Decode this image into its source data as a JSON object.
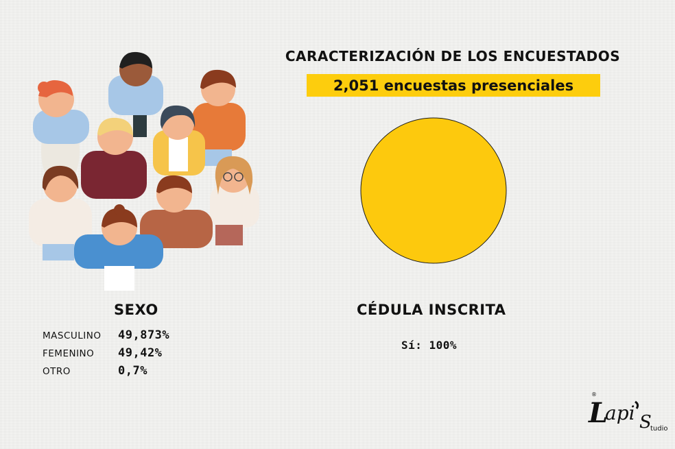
{
  "header": {
    "title": "CARACTERIZACIÓN DE LOS ENCUESTADOS",
    "subtitle": "2,051 encuestas presenciales"
  },
  "sexo": {
    "title": "SEXO",
    "items": [
      {
        "label": "MASCULINO",
        "value": "49,873%"
      },
      {
        "label": "FEMENINO",
        "value": "49,42%"
      },
      {
        "label": "OTRO",
        "value": "0,7%"
      }
    ]
  },
  "cedula": {
    "title": "CÉDULA INSCRITA",
    "value_text": "Sí: 100%"
  },
  "logo": {
    "text": "Lapi's Studio",
    "icon": "lapis-studio-logo"
  },
  "illustration": {
    "icon": "crowd-of-people-illustration"
  },
  "colors": {
    "accent": "#fdcd0d",
    "pie": "#fdc90d",
    "pie_outline": "#1a1a1a",
    "background": "#f2f2f0"
  },
  "chart_data": {
    "type": "pie",
    "categories": [
      "Sí"
    ],
    "values": [
      100
    ],
    "title": "CÉDULA INSCRITA"
  }
}
